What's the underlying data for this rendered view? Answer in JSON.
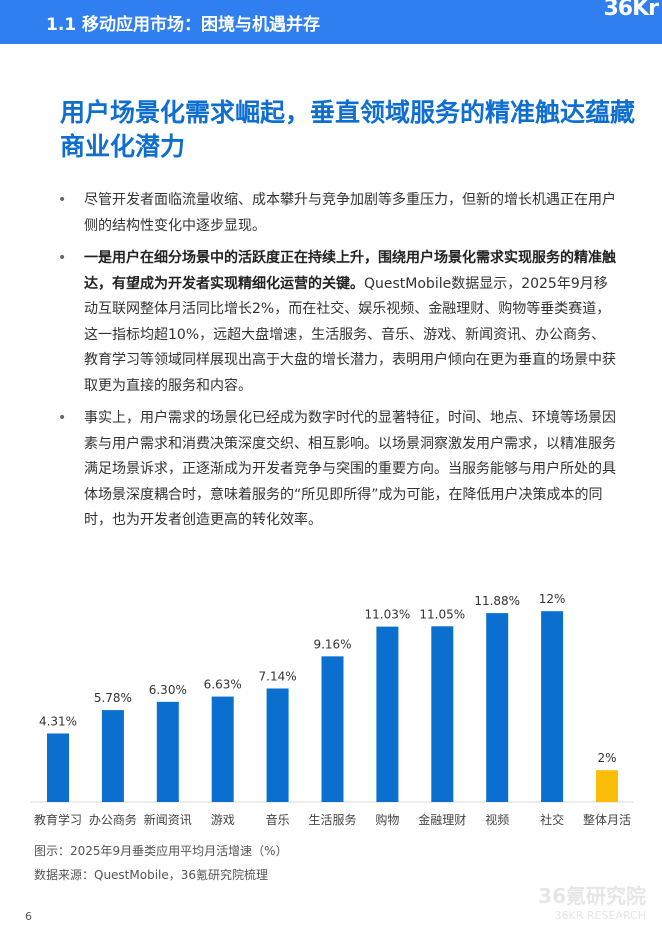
{
  "header": {
    "title": "1.1 移动应用市场：困境与机遇并存",
    "logo": "36Kr"
  },
  "headline": "用户场景化需求崛起，垂直领域服务的精准触达蕴藏商业化潜力",
  "bullets": [
    {
      "bold": "",
      "text": "尽管开发者面临流量收缩、成本攀升与竞争加剧等多重压力，但新的增长机遇正在用户侧的结构性变化中逐步显现。"
    },
    {
      "bold": "一是用户在细分场景中的活跃度正在持续上升，围绕用户场景化需求实现服务的精准触达，有望成为开发者实现精细化运营的关键。",
      "text": "QuestMobile数据显示，2025年9月移动互联网整体月活同比增长2%，而在社交、娱乐视频、金融理财、购物等垂类赛道，这一指标均超10%，远超大盘增速，生活服务、音乐、游戏、新闻资讯、办公商务、教育学习等领域同样展现出高于大盘的增长潜力，表明用户倾向在更为垂直的场景中获取更为直接的服务和内容。"
    },
    {
      "bold": "",
      "text": "事实上，用户需求的场景化已经成为数字时代的显著特征，时间、地点、环境等场景因素与用户需求和消费决策深度交织、相互影响。以场景洞察激发用户需求，以精准服务满足场景诉求，正逐渐成为开发者竞争与突围的重要方向。当服务能够与用户所处的具体场景深度耦合时，意味着服务的“所见即所得”成为可能，在降低用户决策成本的同时，也为开发者创造更高的转化效率。"
    }
  ],
  "chart_data": {
    "type": "bar",
    "categories": [
      "教育学习",
      "办公商务",
      "新闻资讯",
      "游戏",
      "音乐",
      "生活服务",
      "购物",
      "金融理财",
      "视频",
      "社交",
      "整体月活"
    ],
    "values": [
      4.31,
      5.78,
      6.3,
      6.63,
      7.14,
      9.16,
      11.03,
      11.05,
      11.88,
      12,
      2
    ],
    "labels": [
      "4.31%",
      "5.78%",
      "6.30%",
      "6.63%",
      "7.14%",
      "9.16%",
      "11.03%",
      "11.05%",
      "11.88%",
      "12%",
      "2%"
    ],
    "colors": {
      "vertical": "#0a6fcf",
      "overall": "#fbbd08"
    },
    "grid": false
  },
  "caption": "图示：2025年9月垂类应用平均月活增速（%）",
  "source": "数据来源：QuestMobile，36氪研究院梳理",
  "page_number": "6",
  "watermark": {
    "cn": "36氪研究院",
    "en": "36KR RESEARCH"
  }
}
